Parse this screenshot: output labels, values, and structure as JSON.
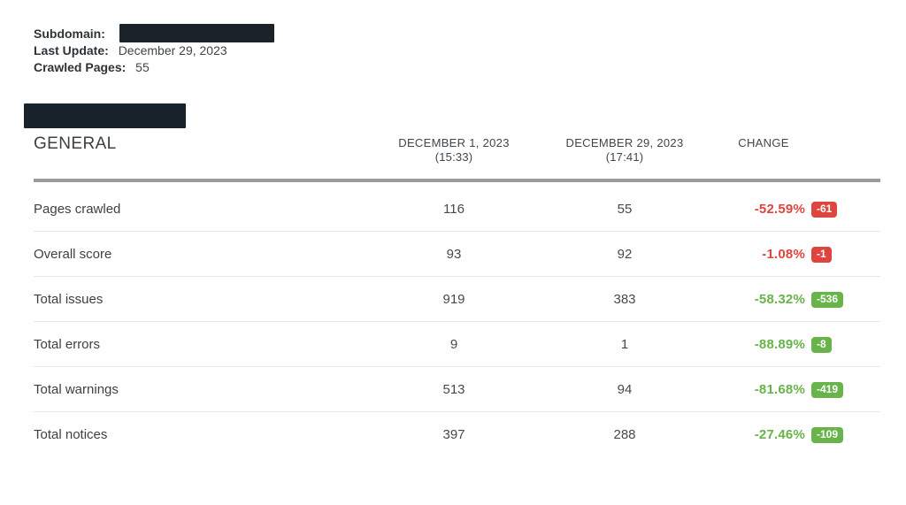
{
  "meta": {
    "subdomain_label": "Subdomain:",
    "last_update_label": "Last Update:",
    "last_update_value": "December 29, 2023",
    "crawled_pages_label": "Crawled Pages:",
    "crawled_pages_value": "55"
  },
  "table": {
    "section_title": "GENERAL",
    "columns": [
      {
        "label": "DECEMBER 1, 2023",
        "sub": "(15:33)"
      },
      {
        "label": "DECEMBER 29, 2023",
        "sub": "(17:41)"
      },
      {
        "label": "CHANGE",
        "sub": ""
      }
    ],
    "rows": [
      {
        "label": "Pages crawled",
        "col1": "116",
        "col2": "55",
        "change_pct": "-52.59%",
        "change_abs": "-61",
        "trend": "negative"
      },
      {
        "label": "Overall score",
        "col1": "93",
        "col2": "92",
        "change_pct": "-1.08%",
        "change_abs": "-1",
        "trend": "negative"
      },
      {
        "label": "Total issues",
        "col1": "919",
        "col2": "383",
        "change_pct": "-58.32%",
        "change_abs": "-536",
        "trend": "positive"
      },
      {
        "label": "Total errors",
        "col1": "9",
        "col2": "1",
        "change_pct": "-88.89%",
        "change_abs": "-8",
        "trend": "positive"
      },
      {
        "label": "Total warnings",
        "col1": "513",
        "col2": "94",
        "change_pct": "-81.68%",
        "change_abs": "-419",
        "trend": "positive"
      },
      {
        "label": "Total notices",
        "col1": "397",
        "col2": "288",
        "change_pct": "-27.46%",
        "change_abs": "-109",
        "trend": "positive"
      }
    ]
  },
  "colors": {
    "negative": "#df453f",
    "positive": "#68b34a",
    "redaction": "#18222b",
    "divider": "#9a9a9a"
  }
}
